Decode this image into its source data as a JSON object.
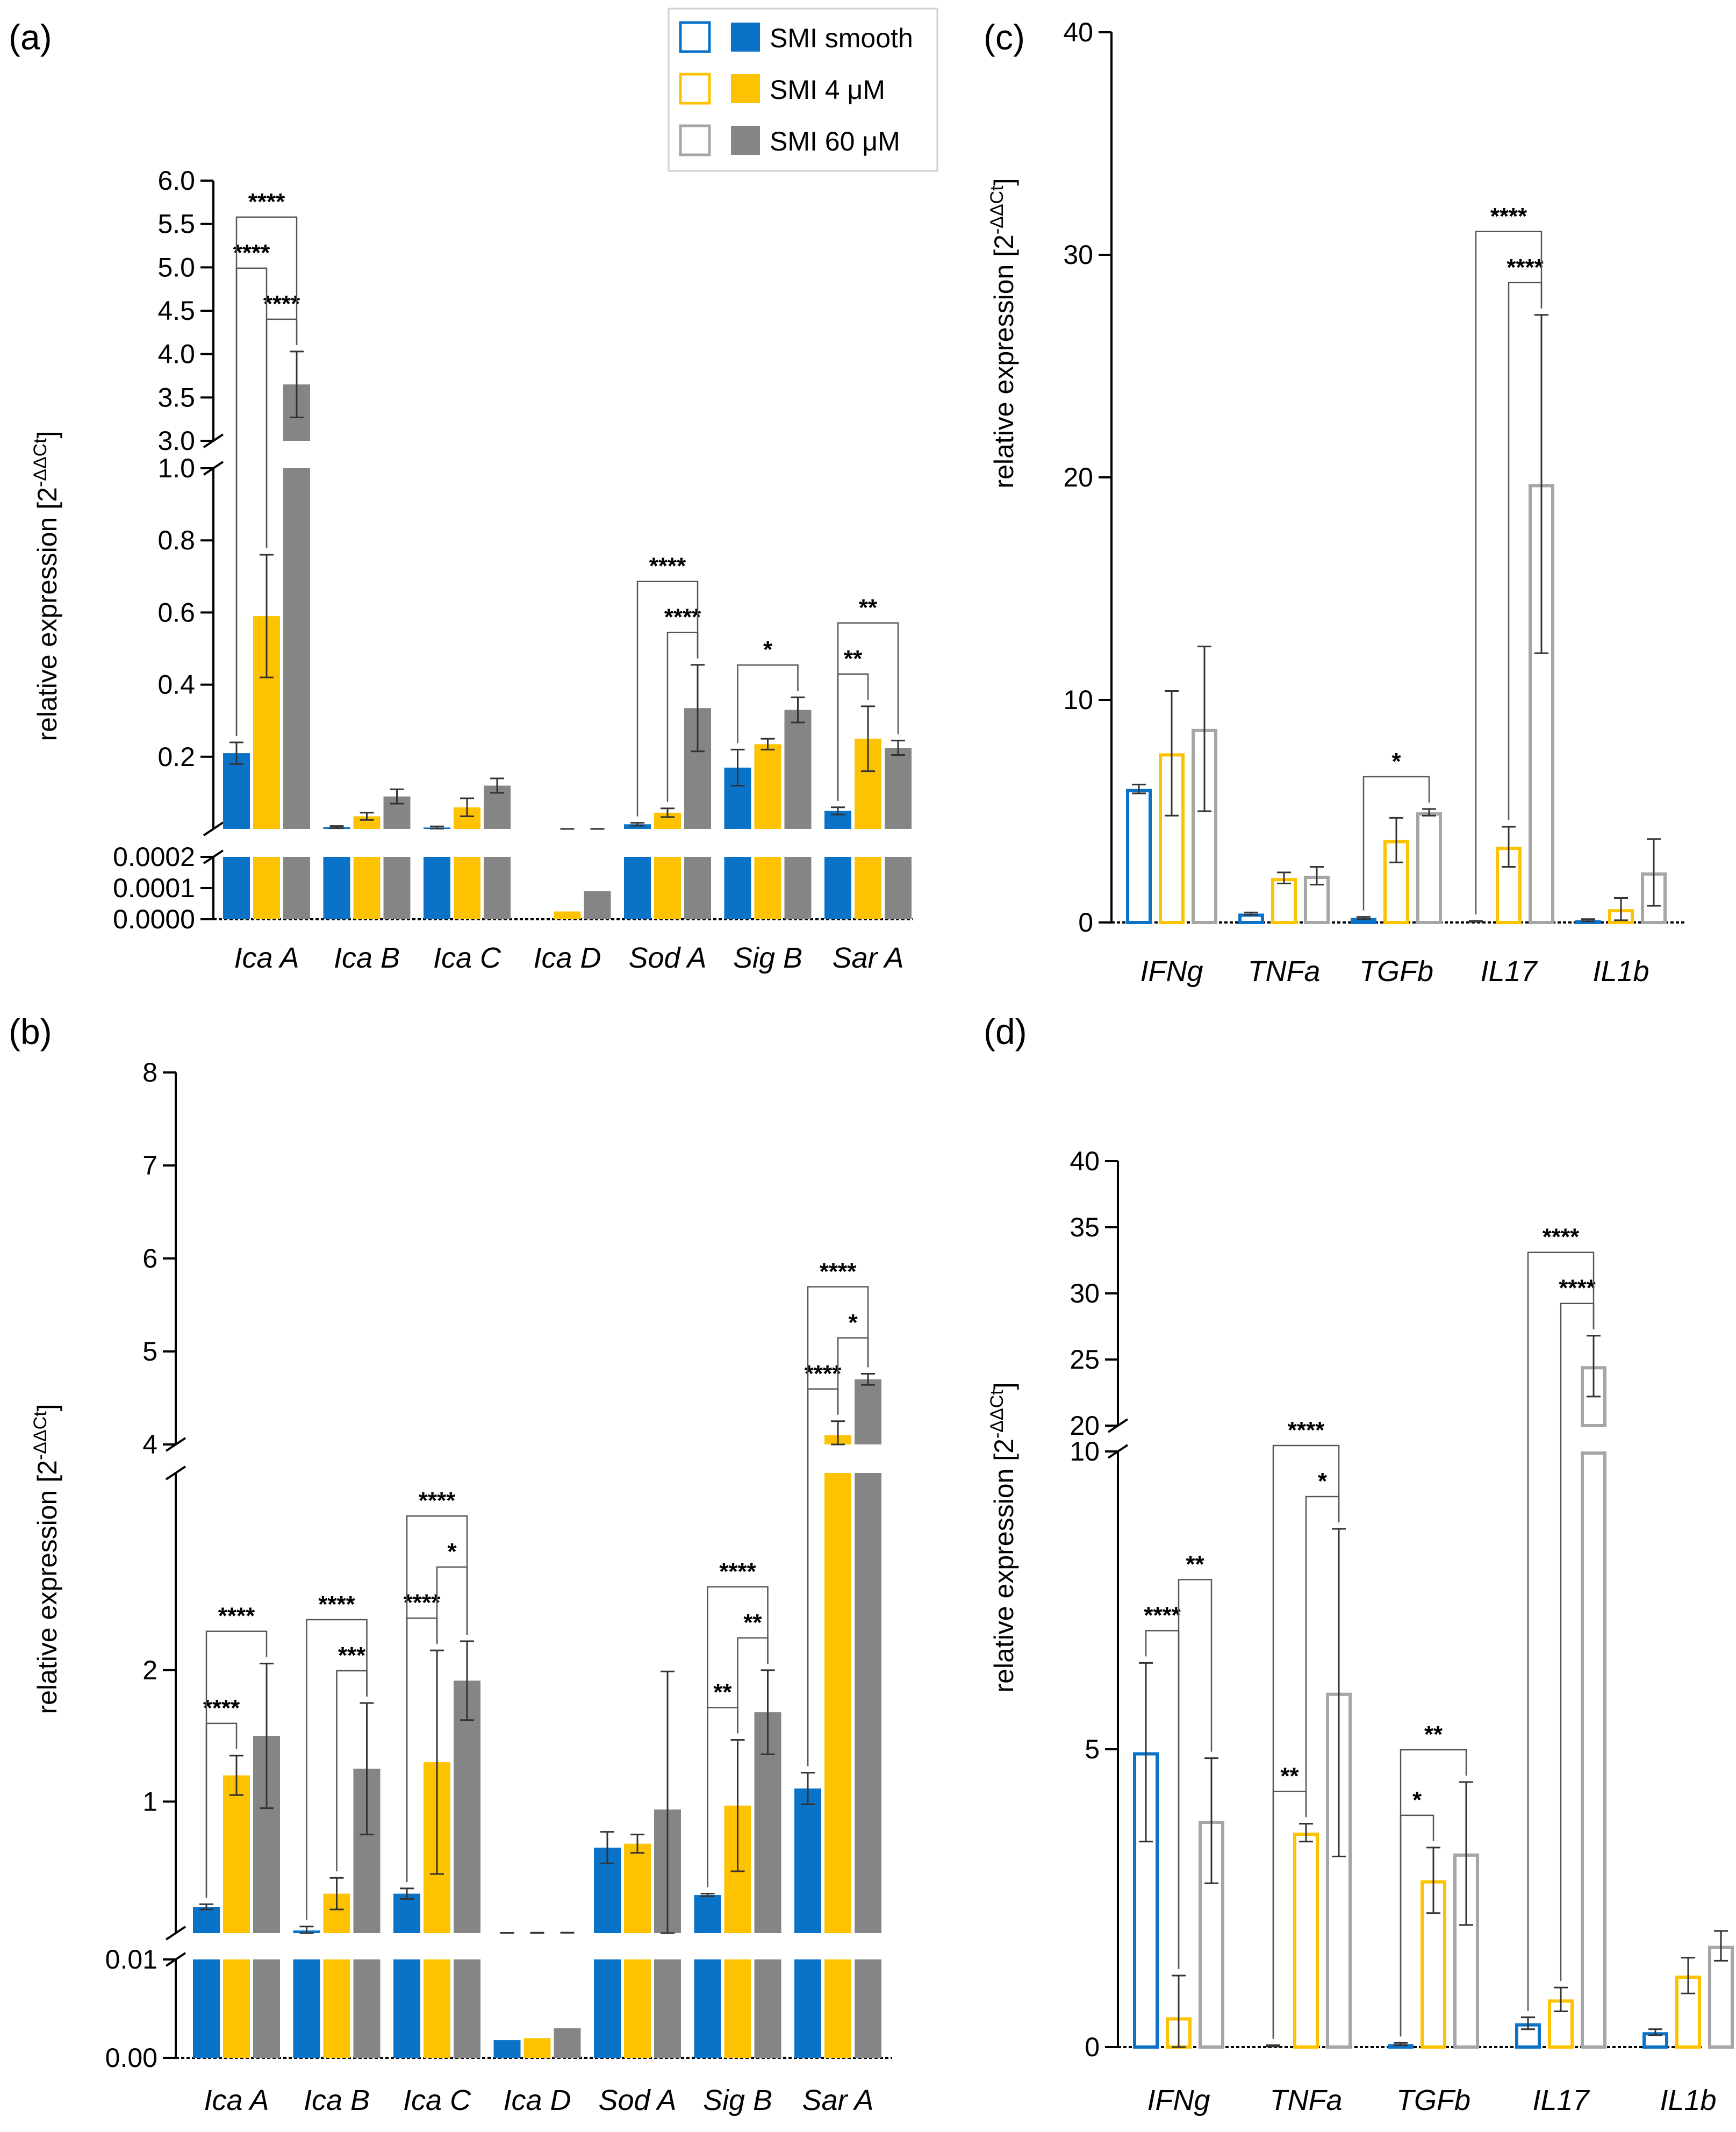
{
  "colors": {
    "blue": "#0A73C8",
    "yellow": "#FDC300",
    "gray": "#858585",
    "axis": "#000000"
  },
  "legend": {
    "items": [
      {
        "label": "SMI smooth",
        "color": "#0A73C8"
      },
      {
        "label": "SMI 4 μM",
        "color": "#FDC300"
      },
      {
        "label": "SMI 60 μM",
        "color": "#858585"
      }
    ]
  },
  "chart_data": [
    {
      "panel": "(a)",
      "type": "bar",
      "style": "filled",
      "ylabel_main": "relative expression [2",
      "ylabel_sup": "-ΔΔCt",
      "ylabel_end": "]",
      "categories": [
        "Ica A",
        "Ica B",
        "Ica C",
        "Ica D",
        "Sod A",
        "Sig B",
        "Sar A"
      ],
      "y_axis_segments": [
        {
          "range": [
            0,
            0.0002
          ],
          "ticks": [
            "0.0000",
            "0.0001",
            "0.0002"
          ]
        },
        {
          "range": [
            0,
            1.0
          ],
          "ticks": [
            "0.2",
            "0.4",
            "0.6",
            "0.8",
            "1.0"
          ]
        },
        {
          "range": [
            3.0,
            6.0
          ],
          "ticks": [
            "3.0",
            "3.5",
            "4.0",
            "4.5",
            "5.0",
            "5.5",
            "6.0"
          ]
        }
      ],
      "series": [
        {
          "name": "SMI smooth",
          "values": [
            0.21,
            0.005,
            0.004,
            0,
            0.013,
            0.17,
            0.05
          ],
          "errors": [
            0.03,
            0.003,
            0.003,
            0,
            0.004,
            0.05,
            0.01
          ]
        },
        {
          "name": "SMI 4 μM",
          "values": [
            0.59,
            0.035,
            0.06,
            2.5e-05,
            0.045,
            0.235,
            0.25
          ],
          "errors": [
            0.17,
            0.01,
            0.025,
            1.5e-05,
            0.012,
            0.015,
            0.09
          ]
        },
        {
          "name": "SMI 60 μM",
          "values": [
            3.65,
            0.09,
            0.12,
            9e-05,
            0.335,
            0.33,
            0.225
          ],
          "errors": [
            0.38,
            0.02,
            0.02,
            6e-05,
            0.12,
            0.035,
            0.02
          ]
        }
      ],
      "significance": [
        {
          "cat": 0,
          "from": 0,
          "to": 2,
          "label": "****"
        },
        {
          "cat": 0,
          "from": 1,
          "to": 2,
          "label": "****"
        },
        {
          "cat": 0,
          "from": 0,
          "to": 1,
          "label": "****"
        },
        {
          "cat": 4,
          "from": 0,
          "to": 2,
          "label": "****"
        },
        {
          "cat": 4,
          "from": 1,
          "to": 2,
          "label": "****"
        },
        {
          "cat": 5,
          "from": 0,
          "to": 2,
          "label": "*"
        },
        {
          "cat": 6,
          "from": 0,
          "to": 2,
          "label": "**"
        },
        {
          "cat": 6,
          "from": 0,
          "to": 1,
          "label": "**"
        }
      ]
    },
    {
      "panel": "(b)",
      "type": "bar",
      "style": "filled",
      "ylabel_main": "relative expression [2",
      "ylabel_sup": "-ΔΔCt",
      "ylabel_end": "]",
      "categories": [
        "Ica A",
        "Ica B",
        "Ica C",
        "Ica D",
        "Sod A",
        "Sig B",
        "Sar A"
      ],
      "y_axis_segments": [
        {
          "range": [
            0,
            0.01
          ],
          "ticks": [
            "0.00",
            "0.01"
          ]
        },
        {
          "range": [
            0,
            3.5
          ],
          "ticks": [
            "1",
            "2"
          ]
        },
        {
          "range": [
            4,
            8
          ],
          "ticks": [
            "4",
            "5",
            "6",
            "7",
            "8"
          ]
        }
      ],
      "series": [
        {
          "name": "SMI smooth",
          "values": [
            0.2,
            0.02,
            0.3,
            0.0018,
            0.65,
            0.29,
            1.1
          ],
          "errors": [
            0.02,
            0.03,
            0.04,
            0.0005,
            0.12,
            0.01,
            0.12
          ]
        },
        {
          "name": "SMI 4 μM",
          "values": [
            1.2,
            0.3,
            1.3,
            0.002,
            0.68,
            0.97,
            4.1
          ],
          "errors": [
            0.15,
            0.12,
            0.85,
            0.001,
            0.07,
            0.5,
            0.15
          ]
        },
        {
          "name": "SMI 60 μM",
          "values": [
            1.5,
            1.25,
            1.92,
            0.003,
            0.94,
            1.68,
            4.7
          ],
          "errors": [
            0.55,
            0.5,
            0.3,
            0.0001,
            1.05,
            0.32,
            0.06
          ]
        }
      ],
      "significance": [
        {
          "cat": 0,
          "from": 0,
          "to": 2,
          "label": "****"
        },
        {
          "cat": 0,
          "from": 0,
          "to": 1,
          "label": "****"
        },
        {
          "cat": 1,
          "from": 0,
          "to": 2,
          "label": "****"
        },
        {
          "cat": 1,
          "from": 1,
          "to": 2,
          "label": "***"
        },
        {
          "cat": 2,
          "from": 0,
          "to": 2,
          "label": "****"
        },
        {
          "cat": 2,
          "from": 0,
          "to": 1,
          "label": "****"
        },
        {
          "cat": 2,
          "from": 1,
          "to": 2,
          "label": "*"
        },
        {
          "cat": 5,
          "from": 0,
          "to": 2,
          "label": "****"
        },
        {
          "cat": 5,
          "from": 0,
          "to": 1,
          "label": "**"
        },
        {
          "cat": 5,
          "from": 1,
          "to": 2,
          "label": "**"
        },
        {
          "cat": 6,
          "from": 0,
          "to": 2,
          "label": "****"
        },
        {
          "cat": 6,
          "from": 0,
          "to": 1,
          "label": "****"
        },
        {
          "cat": 6,
          "from": 1,
          "to": 2,
          "label": "*"
        }
      ]
    },
    {
      "panel": "(c)",
      "type": "bar",
      "style": "outline",
      "ylabel_main": "relative expression [2",
      "ylabel_sup": "-ΔΔCt",
      "ylabel_end": "]",
      "categories": [
        "IFNg",
        "TNFa",
        "TGFb",
        "IL17",
        "IL1b"
      ],
      "y_axis_segments": [
        {
          "range": [
            0,
            40
          ],
          "ticks": [
            "0",
            "10",
            "20",
            "30",
            "40"
          ]
        }
      ],
      "series": [
        {
          "name": "SMI smooth",
          "values": [
            6.0,
            0.4,
            0.2,
            0.05,
            0.1
          ],
          "errors": [
            0.2,
            0.05,
            0.05,
            0.02,
            0.05
          ]
        },
        {
          "name": "SMI 4 μM",
          "values": [
            7.6,
            2.0,
            3.7,
            3.4,
            0.6
          ],
          "errors": [
            2.8,
            0.25,
            1.0,
            0.9,
            0.5
          ]
        },
        {
          "name": "SMI 60 μM",
          "values": [
            8.7,
            2.1,
            4.95,
            19.7,
            2.25
          ],
          "errors": [
            3.7,
            0.4,
            0.15,
            7.6,
            1.5
          ]
        }
      ],
      "significance": [
        {
          "cat": 2,
          "from": 0,
          "to": 2,
          "label": "*"
        },
        {
          "cat": 3,
          "from": 0,
          "to": 2,
          "label": "****"
        },
        {
          "cat": 3,
          "from": 1,
          "to": 2,
          "label": "****"
        }
      ]
    },
    {
      "panel": "(d)",
      "type": "bar",
      "style": "outline",
      "ylabel_main": "relative expression [2",
      "ylabel_sup": "-ΔΔCt",
      "ylabel_end": "]",
      "categories": [
        "IFNg",
        "TNFa",
        "TGFb",
        "IL17",
        "IL1b"
      ],
      "y_axis_segments": [
        {
          "range": [
            0,
            10
          ],
          "ticks": [
            "0",
            "5",
            "10"
          ]
        },
        {
          "range": [
            20,
            40
          ],
          "ticks": [
            "20",
            "25",
            "30",
            "35",
            "40"
          ]
        }
      ],
      "series": [
        {
          "name": "SMI smooth",
          "values": [
            4.95,
            0.02,
            0.05,
            0.4,
            0.25
          ],
          "errors": [
            1.5,
            0.01,
            0.02,
            0.1,
            0.05
          ]
        },
        {
          "name": "SMI 4 μM",
          "values": [
            0.5,
            3.6,
            2.8,
            0.8,
            1.2
          ],
          "errors": [
            0.7,
            0.15,
            0.55,
            0.2,
            0.3
          ]
        },
        {
          "name": "SMI 60 μM",
          "values": [
            3.8,
            5.95,
            3.25,
            24.5,
            1.7
          ],
          "errors": [
            1.05,
            2.75,
            1.2,
            2.3,
            0.25
          ]
        }
      ],
      "significance": [
        {
          "cat": 0,
          "from": 0,
          "to": 1,
          "label": "****"
        },
        {
          "cat": 0,
          "from": 1,
          "to": 2,
          "label": "**"
        },
        {
          "cat": 1,
          "from": 0,
          "to": 2,
          "label": "****"
        },
        {
          "cat": 1,
          "from": 0,
          "to": 1,
          "label": "**"
        },
        {
          "cat": 1,
          "from": 1,
          "to": 2,
          "label": "*"
        },
        {
          "cat": 2,
          "from": 0,
          "to": 2,
          "label": "**"
        },
        {
          "cat": 2,
          "from": 0,
          "to": 1,
          "label": "*"
        },
        {
          "cat": 3,
          "from": 0,
          "to": 2,
          "label": "****"
        },
        {
          "cat": 3,
          "from": 1,
          "to": 2,
          "label": "****"
        }
      ]
    }
  ]
}
